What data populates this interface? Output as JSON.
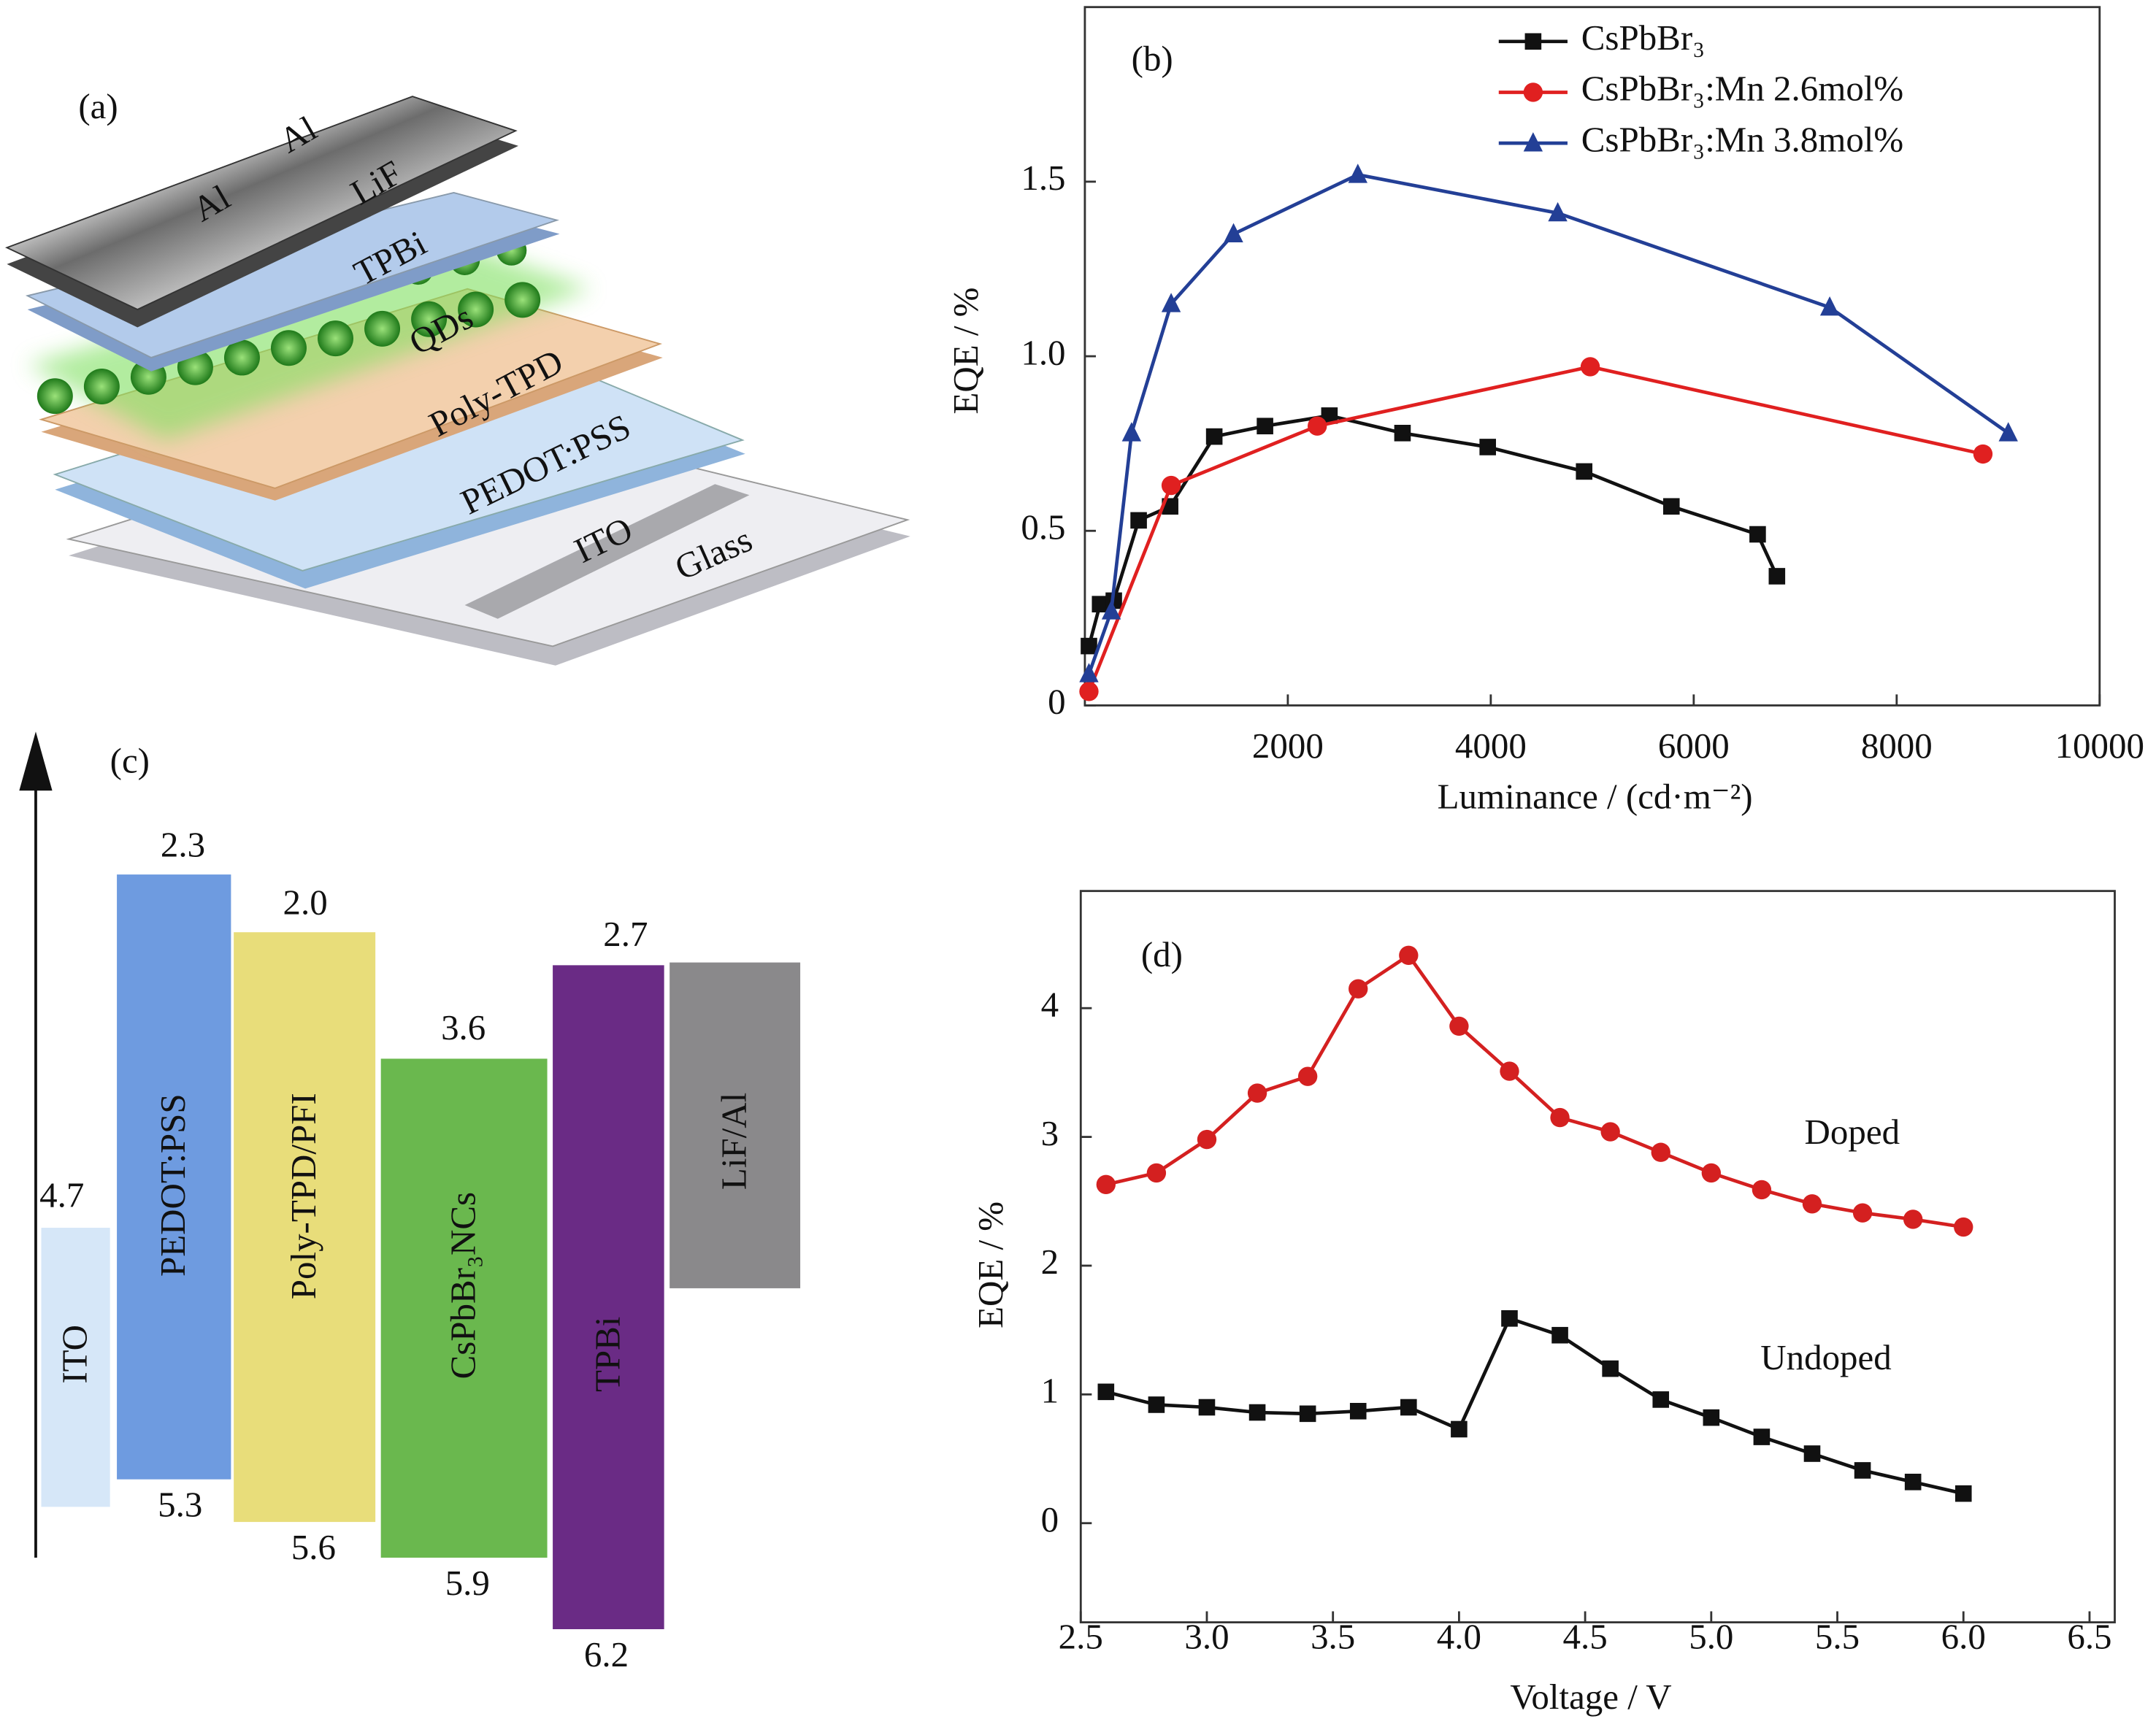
{
  "panel_a": {
    "label": "(a)",
    "layers": [
      "Al",
      "Al",
      "LiF",
      "TPBi",
      "QDs",
      "Poly-TPD",
      "PEDOT:PSS",
      "ITO",
      "Glass"
    ]
  },
  "panel_c": {
    "label": "(c)",
    "layers": [
      {
        "name": "ITO",
        "top": "4.7"
      },
      {
        "name": "PEDOT:PSS",
        "top": "2.3",
        "bottom": "5.3"
      },
      {
        "name": "Poly-TPD/PFI",
        "top": "2.0",
        "bottom": "5.6"
      },
      {
        "name": "CsPbBr₃NCs",
        "top": "3.6",
        "bottom": "5.9"
      },
      {
        "name": "TPBi",
        "top": "2.7",
        "bottom": "6.2"
      },
      {
        "name": "LiF/Al"
      }
    ]
  },
  "chart_data": [
    {
      "type": "line",
      "label": "(b)",
      "xlabel": "Luminance / (cd·m⁻²)",
      "ylabel": "EQE / %",
      "xlim": [
        0,
        10000
      ],
      "ylim": [
        0,
        2.0
      ],
      "xticks": [
        2000,
        4000,
        6000,
        8000,
        10000
      ],
      "yticks": [
        0,
        0.5,
        {
          "value": 1.0,
          "label": "1.0"
        },
        1.5
      ],
      "series": [
        {
          "name": "CsPbBr₃",
          "color": "#111111",
          "marker": "square",
          "x": [
            40,
            150,
            285,
            530,
            840,
            1275,
            1775,
            2410,
            3130,
            3970,
            4920,
            5780,
            6630,
            6820
          ],
          "values": [
            0.17,
            0.29,
            0.3,
            0.53,
            0.57,
            0.77,
            0.8,
            0.83,
            0.78,
            0.74,
            0.67,
            0.57,
            0.49,
            0.37
          ]
        },
        {
          "name": "CsPbBr₃:Mn 2.6mol%",
          "color": "#e02020",
          "marker": "circle",
          "x": [
            40,
            850,
            2290,
            4980,
            8850
          ],
          "values": [
            0.04,
            0.63,
            0.8,
            0.97,
            0.72
          ]
        },
        {
          "name": "CsPbBr₃:Mn 3.8mol%",
          "color": "#233f96",
          "marker": "triangle",
          "x": [
            40,
            260,
            460,
            850,
            1465,
            2690,
            4660,
            7340,
            9100
          ],
          "values": [
            0.09,
            0.27,
            0.78,
            1.15,
            1.35,
            1.52,
            1.41,
            1.14,
            0.78
          ]
        }
      ]
    },
    {
      "type": "line",
      "label": "(d)",
      "xlabel": "Voltage / V",
      "ylabel": "EQE / %",
      "xlim": [
        2.5,
        6.6
      ],
      "ylim": [
        -0.77,
        4.91
      ],
      "xticks": [
        2.5,
        {
          "value": 3.0,
          "label": "3.0"
        },
        3.5,
        {
          "value": 4.0,
          "label": "4.0"
        },
        4.5,
        {
          "value": 5.0,
          "label": "5.0"
        },
        5.5,
        {
          "value": 6.0,
          "label": "6.0"
        },
        6.5
      ],
      "yticks": [
        0,
        1,
        2,
        3,
        4
      ],
      "series": [
        {
          "name": "Doped",
          "color": "#d42020",
          "marker": "circle",
          "x": [
            2.6,
            2.8,
            3.0,
            3.2,
            3.4,
            3.6,
            3.8,
            4.0,
            4.2,
            4.4,
            4.6,
            4.8,
            5.0,
            5.2,
            5.4,
            5.6,
            5.8,
            6.0
          ],
          "values": [
            2.63,
            2.72,
            2.98,
            3.34,
            3.47,
            4.15,
            4.41,
            3.86,
            3.51,
            3.15,
            3.04,
            2.88,
            2.72,
            2.59,
            2.48,
            2.41,
            2.36,
            2.3
          ]
        },
        {
          "name": "Undoped",
          "color": "#111111",
          "marker": "square",
          "x": [
            2.6,
            2.8,
            3.0,
            3.2,
            3.4,
            3.6,
            3.8,
            4.0,
            4.2,
            4.4,
            4.6,
            4.8,
            5.0,
            5.2,
            5.4,
            5.6,
            5.8,
            6.0
          ],
          "values": [
            1.02,
            0.92,
            0.9,
            0.86,
            0.85,
            0.87,
            0.9,
            0.73,
            1.59,
            1.46,
            1.2,
            0.96,
            0.82,
            0.67,
            0.54,
            0.41,
            0.32,
            0.23
          ]
        }
      ]
    }
  ]
}
